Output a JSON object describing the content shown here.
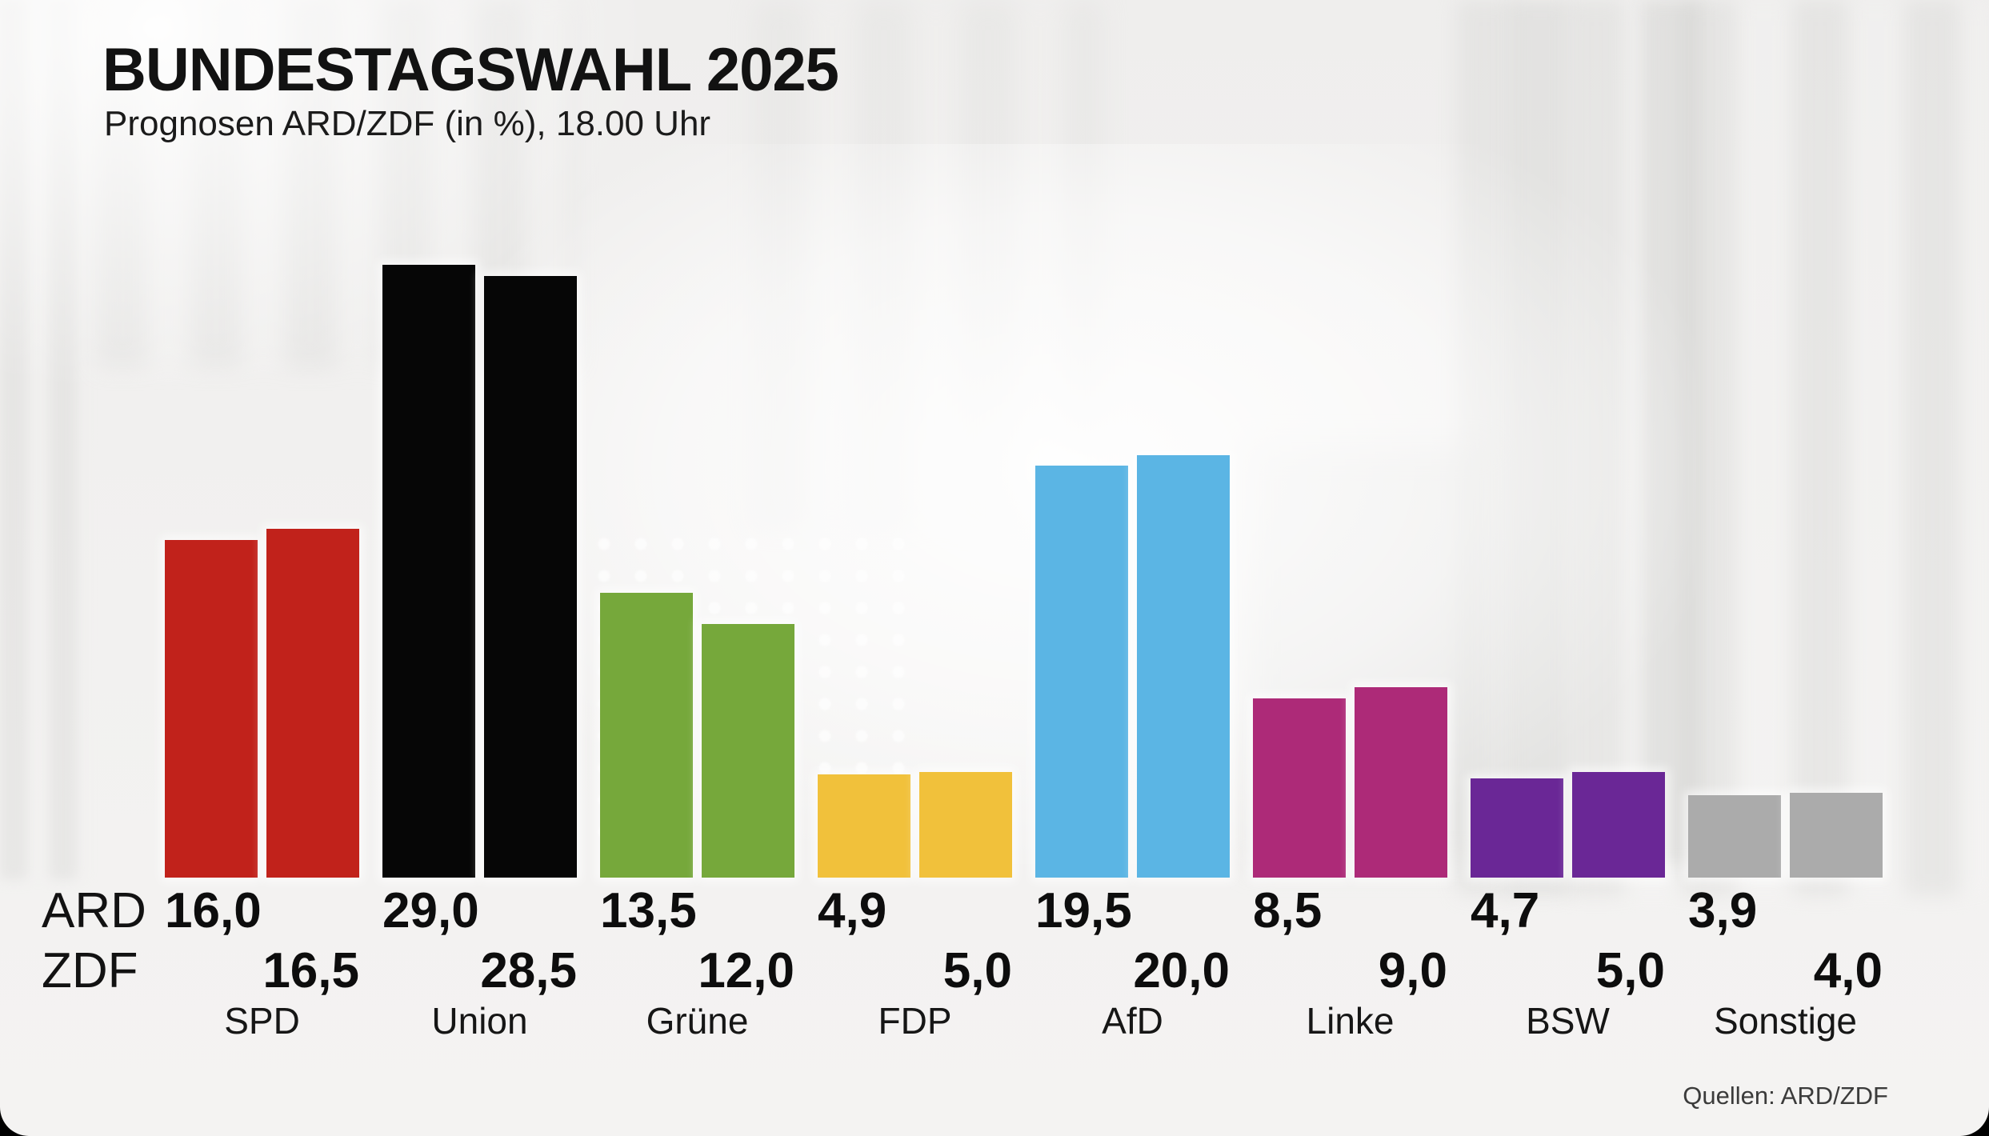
{
  "header": {
    "title": "BUNDESTAGSWAHL 2025",
    "subtitle": "Prognosen ARD/ZDF (in %), 18.00 Uhr"
  },
  "rows": {
    "ard_label": "ARD",
    "zdf_label": "ZDF"
  },
  "footer": {
    "source": "Quellen: ARD/ZDF"
  },
  "chart_data": {
    "type": "bar",
    "title": "BUNDESTAGSWAHL 2025",
    "subtitle": "Prognosen ARD/ZDF (in %), 18.00 Uhr",
    "unit": "%",
    "decimal_separator": ",",
    "categories": [
      "SPD",
      "Union",
      "Grüne",
      "FDP",
      "AfD",
      "Linke",
      "BSW",
      "Sonstige"
    ],
    "series": [
      {
        "name": "ARD",
        "values": [
          16.0,
          29.0,
          13.5,
          4.9,
          19.5,
          8.5,
          4.7,
          3.9
        ]
      },
      {
        "name": "ZDF",
        "values": [
          16.5,
          28.5,
          12.0,
          5.0,
          20.0,
          9.0,
          5.0,
          4.0
        ]
      }
    ],
    "party_colors": {
      "SPD": "#c1221b",
      "Union": "#060606",
      "Grüne": "#76a83b",
      "FDP": "#f1c13b",
      "AfD": "#5bb5e4",
      "Linke": "#ad2a78",
      "BSW": "#6a2796",
      "Sonstige": "#ababab"
    },
    "ylim": [
      0,
      30
    ],
    "grid": false,
    "legend_position": "left-row-labels",
    "source_note": "Quellen: ARD/ZDF"
  }
}
